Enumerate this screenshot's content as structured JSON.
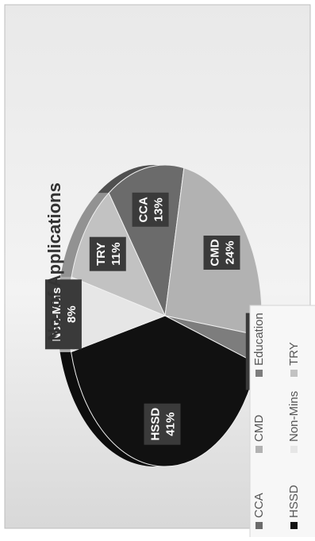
{
  "chart_data": {
    "type": "pie",
    "title": "No. of Applications",
    "legend_position": "right",
    "categories": [
      "CCA",
      "CMD",
      "Education",
      "HSSD",
      "Non-Mins",
      "TRY"
    ],
    "values": [
      13,
      24,
      3,
      41,
      8,
      11
    ],
    "value_labels": [
      "13%",
      "24%",
      "3%",
      "41%",
      "8%",
      "11%"
    ],
    "colors": [
      "#6b6b6b",
      "#b2b2b2",
      "#7d7d7d",
      "#111111",
      "#e6e6e6",
      "#c2c2c2"
    ]
  }
}
